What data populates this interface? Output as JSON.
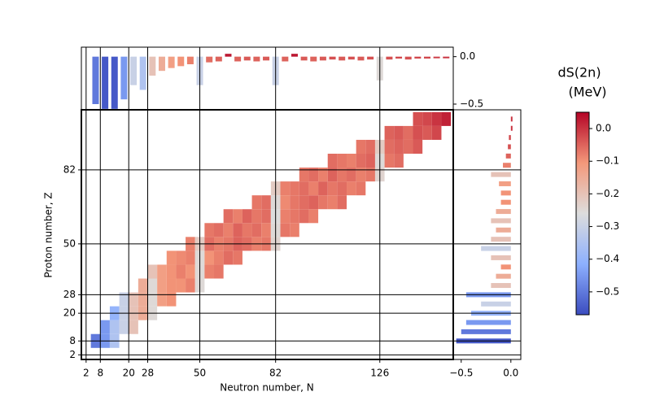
{
  "chart_data": {
    "type": "heatmap",
    "x_label": "Neutron number, N",
    "y_label": "Proton number, Z",
    "xlim": [
      0,
      157
    ],
    "ylim": [
      0,
      108
    ],
    "xticks": [
      2,
      8,
      20,
      28,
      50,
      82,
      126
    ],
    "yticks": [
      2,
      8,
      20,
      28,
      50,
      82
    ],
    "grid": true,
    "clim": [
      -0.57,
      0.05
    ],
    "colormap": [
      "#3b4cc0",
      "#8db0fe",
      "#dddddd",
      "#f4987a",
      "#b40426"
    ],
    "rows": [
      {
        "z": 8,
        "n": [
          6,
          10,
          14
        ],
        "values": [
          -0.5,
          -0.45,
          -0.35
        ]
      },
      {
        "z": 14,
        "n": [
          10,
          14,
          18,
          22
        ],
        "values": [
          -0.45,
          -0.35,
          -0.3,
          -0.2
        ]
      },
      {
        "z": 20,
        "n": [
          14,
          18,
          22,
          26,
          30
        ],
        "values": [
          -0.4,
          -0.3,
          -0.2,
          -0.15,
          -0.25
        ]
      },
      {
        "z": 26,
        "n": [
          18,
          22,
          26,
          30,
          34,
          38
        ],
        "values": [
          -0.3,
          -0.2,
          -0.15,
          -0.25,
          -0.12,
          -0.1
        ]
      },
      {
        "z": 32,
        "n": [
          26,
          30,
          34,
          38,
          42,
          46,
          50
        ],
        "values": [
          -0.15,
          -0.25,
          -0.12,
          -0.1,
          -0.1,
          -0.08,
          -0.25
        ]
      },
      {
        "z": 38,
        "n": [
          30,
          34,
          38,
          42,
          46,
          50,
          54,
          58
        ],
        "values": [
          -0.2,
          -0.12,
          -0.1,
          -0.08,
          -0.1,
          -0.25,
          -0.08,
          -0.07
        ]
      },
      {
        "z": 44,
        "n": [
          38,
          42,
          46,
          50,
          54,
          58,
          62,
          66
        ],
        "values": [
          -0.1,
          -0.09,
          -0.08,
          -0.25,
          -0.1,
          -0.08,
          -0.06,
          -0.07
        ]
      },
      {
        "z": 50,
        "n": [
          46,
          50,
          54,
          58,
          62,
          66,
          70,
          74,
          78,
          82
        ],
        "values": [
          -0.08,
          -0.22,
          -0.06,
          -0.08,
          -0.07,
          -0.05,
          -0.06,
          -0.08,
          -0.07,
          -0.24
        ]
      },
      {
        "z": 56,
        "n": [
          54,
          58,
          62,
          66,
          70,
          74,
          78,
          82,
          86,
          90
        ],
        "values": [
          -0.07,
          -0.06,
          -0.08,
          -0.05,
          -0.07,
          -0.06,
          -0.08,
          -0.25,
          -0.07,
          -0.08
        ]
      },
      {
        "z": 62,
        "n": [
          62,
          66,
          70,
          74,
          78,
          82,
          86,
          90,
          94,
          98
        ],
        "values": [
          -0.06,
          -0.08,
          -0.05,
          -0.07,
          -0.06,
          -0.26,
          -0.08,
          -0.07,
          -0.06,
          -0.08
        ]
      },
      {
        "z": 68,
        "n": [
          74,
          78,
          82,
          86,
          90,
          94,
          98,
          102,
          106,
          110
        ],
        "values": [
          -0.07,
          -0.06,
          -0.25,
          -0.09,
          -0.07,
          -0.06,
          -0.05,
          -0.07,
          -0.08,
          -0.06
        ]
      },
      {
        "z": 74,
        "n": [
          82,
          86,
          90,
          94,
          98,
          102,
          106,
          110,
          114,
          118
        ],
        "values": [
          -0.22,
          -0.08,
          -0.07,
          -0.06,
          -0.08,
          -0.05,
          -0.07,
          -0.06,
          -0.08,
          -0.07
        ]
      },
      {
        "z": 80,
        "n": [
          94,
          98,
          102,
          106,
          110,
          114,
          118,
          122,
          126
        ],
        "values": [
          -0.07,
          -0.06,
          -0.08,
          -0.05,
          -0.07,
          -0.06,
          -0.08,
          -0.07,
          -0.24
        ]
      },
      {
        "z": 86,
        "n": [
          106,
          110,
          114,
          118,
          122,
          126,
          130,
          134
        ],
        "values": [
          -0.06,
          -0.07,
          -0.08,
          -0.06,
          -0.05,
          -0.25,
          -0.07,
          -0.06
        ]
      },
      {
        "z": 92,
        "n": [
          118,
          122,
          126,
          130,
          134,
          138,
          142
        ],
        "values": [
          -0.07,
          -0.06,
          -0.22,
          -0.06,
          -0.05,
          -0.06,
          -0.04
        ]
      },
      {
        "z": 98,
        "n": [
          130,
          134,
          138,
          142,
          146,
          150
        ],
        "values": [
          -0.05,
          -0.04,
          -0.06,
          -0.03,
          -0.04,
          -0.02
        ]
      },
      {
        "z": 104,
        "n": [
          142,
          146,
          150,
          154
        ],
        "values": [
          -0.03,
          -0.02,
          0.0,
          0.02
        ]
      }
    ],
    "top_marginal": {
      "x": [
        6,
        10,
        14,
        18,
        22,
        26,
        30,
        34,
        38,
        42,
        46,
        50,
        54,
        58,
        62,
        66,
        70,
        74,
        78,
        82,
        86,
        90,
        94,
        98,
        102,
        106,
        110,
        114,
        118,
        122,
        126,
        130,
        134,
        138,
        142,
        146,
        150,
        154
      ],
      "values": [
        -0.5,
        -0.55,
        -0.55,
        -0.45,
        -0.3,
        -0.35,
        -0.2,
        -0.15,
        -0.12,
        -0.1,
        -0.08,
        -0.3,
        -0.06,
        -0.05,
        0.03,
        -0.05,
        -0.04,
        -0.05,
        -0.04,
        -0.3,
        -0.05,
        0.03,
        -0.04,
        -0.05,
        -0.04,
        -0.03,
        -0.04,
        -0.03,
        -0.04,
        -0.03,
        -0.25,
        -0.03,
        -0.02,
        -0.03,
        -0.02,
        -0.02,
        -0.01,
        0.0
      ],
      "ylim": [
        -0.56,
        0.1
      ],
      "yticks": [
        {
          "value": 0,
          "label": "0.0"
        },
        {
          "value": -0.5,
          "label": "−0.5"
        }
      ]
    },
    "right_marginal": {
      "y": [
        8,
        12,
        16,
        20,
        24,
        28,
        32,
        36,
        40,
        44,
        48,
        52,
        56,
        60,
        64,
        68,
        72,
        76,
        80,
        84,
        88,
        92,
        96,
        100,
        104
      ],
      "values": [
        -0.55,
        -0.5,
        -0.45,
        -0.4,
        -0.3,
        -0.45,
        -0.2,
        -0.15,
        -0.1,
        -0.2,
        -0.3,
        -0.2,
        -0.15,
        -0.2,
        -0.15,
        -0.1,
        -0.1,
        -0.12,
        -0.2,
        -0.08,
        -0.05,
        -0.03,
        -0.02,
        0.0,
        0.0
      ],
      "xlim": [
        -0.58,
        0.1
      ],
      "xticks": [
        {
          "value": -0.5,
          "label": "−0.5"
        },
        {
          "value": 0,
          "label": "0.0"
        }
      ]
    },
    "colorbar": {
      "label": [
        "dS(2n)",
        "(MeV)"
      ],
      "ticks": [
        {
          "value": 0,
          "label": "0.0"
        },
        {
          "value": -0.1,
          "label": "−0.1"
        },
        {
          "value": -0.2,
          "label": "−0.2"
        },
        {
          "value": -0.3,
          "label": "−0.3"
        },
        {
          "value": -0.4,
          "label": "−0.4"
        },
        {
          "value": -0.5,
          "label": "−0.5"
        }
      ]
    }
  }
}
